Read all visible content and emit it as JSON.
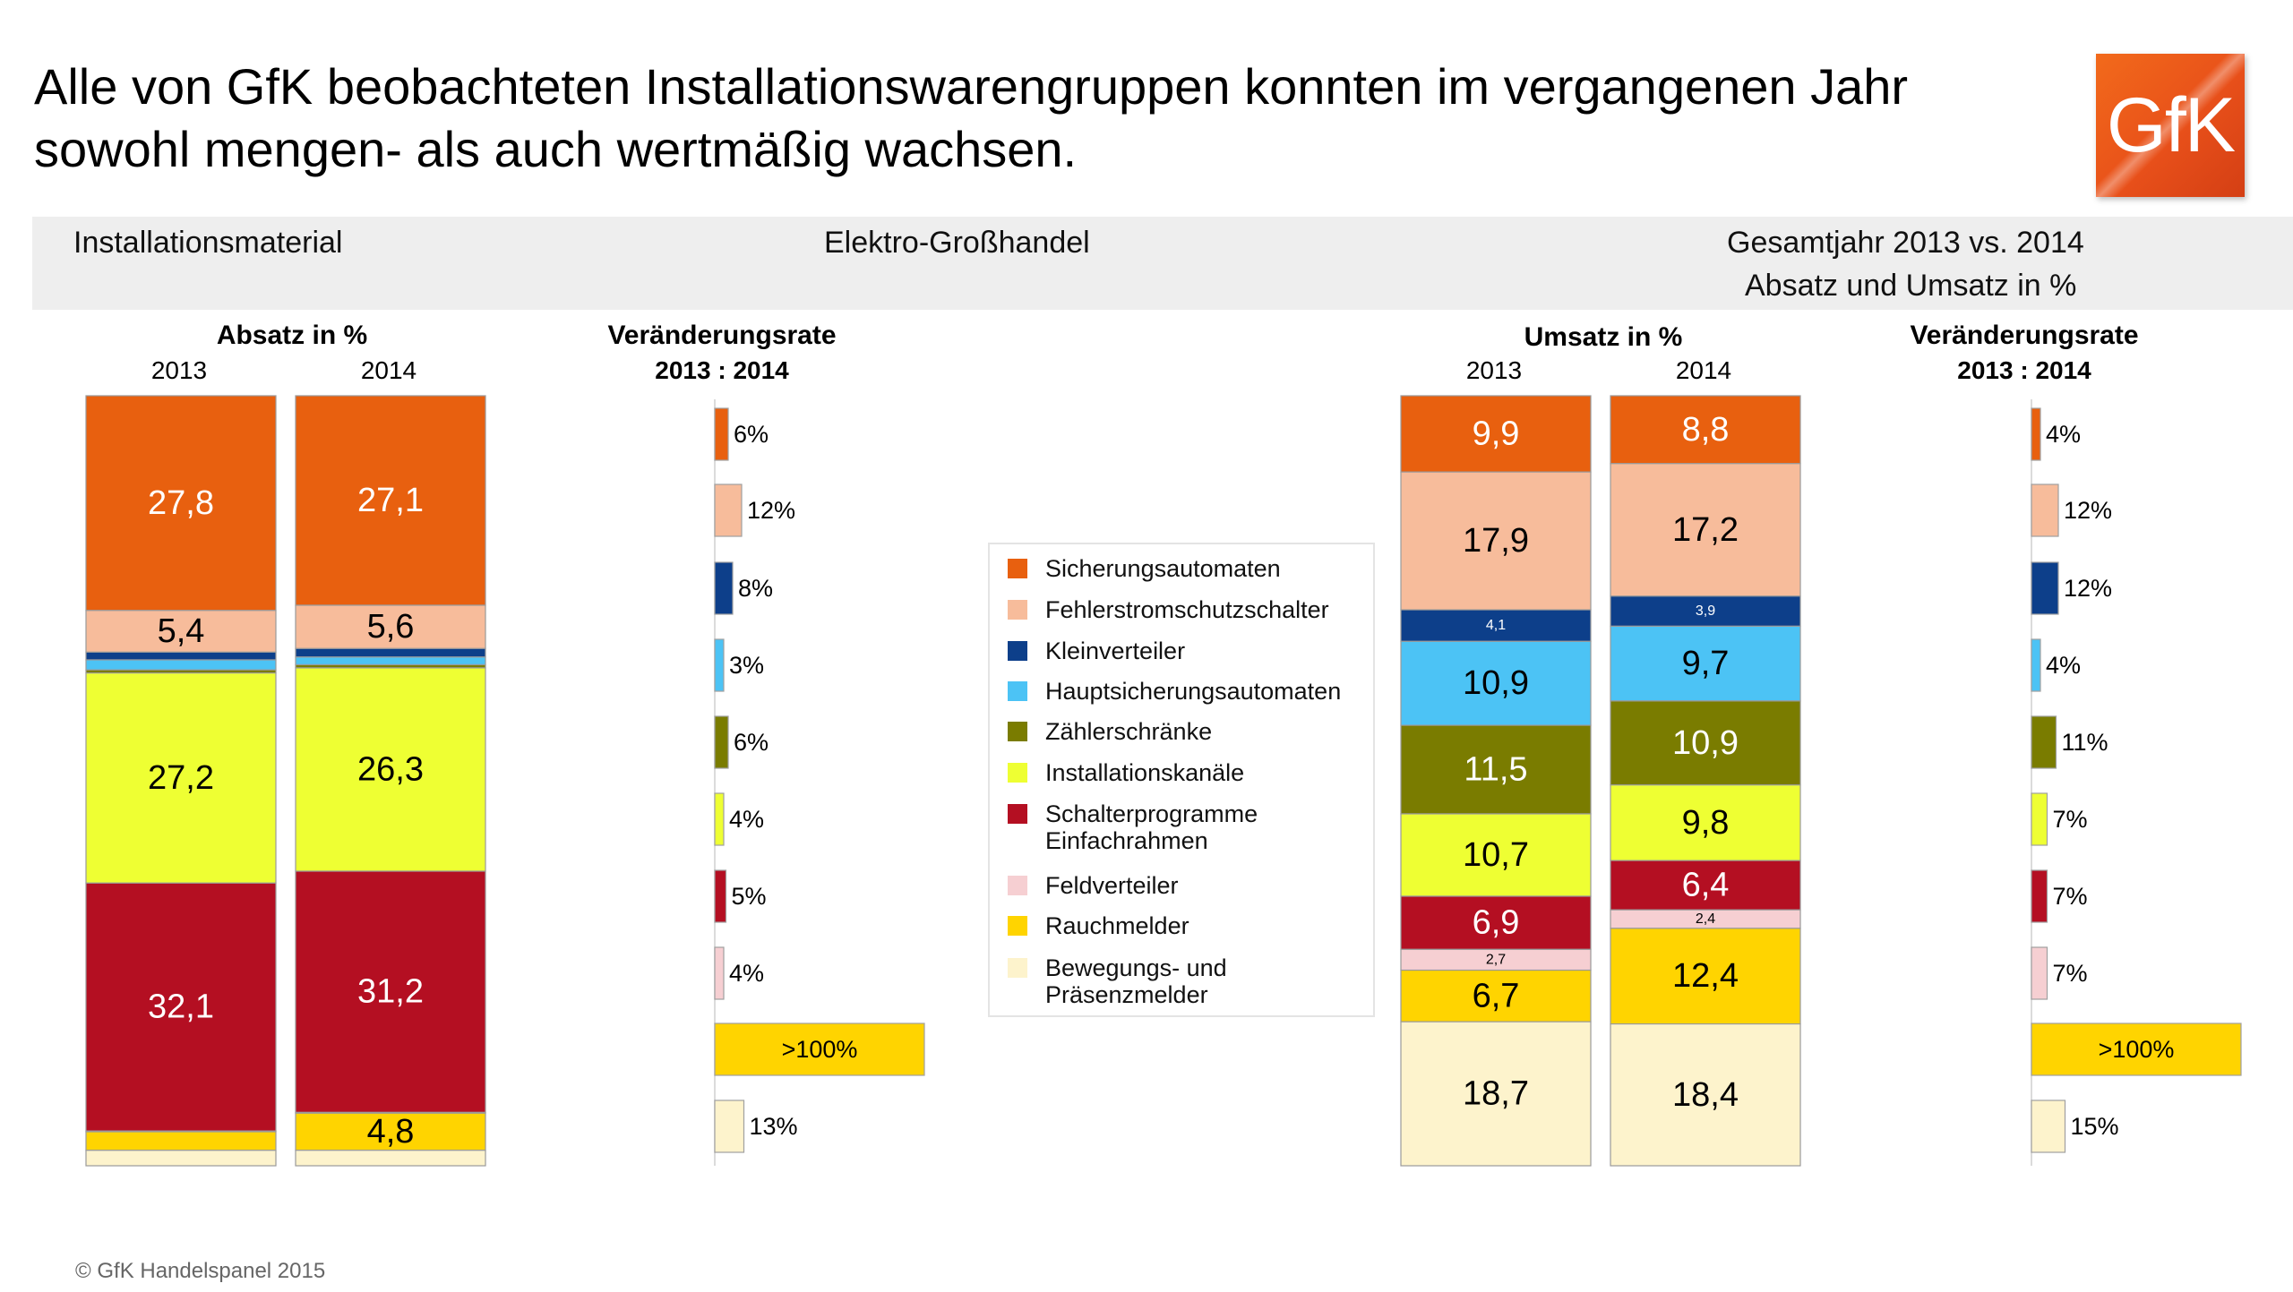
{
  "title": "Alle von GfK beobachteten Installationswarengruppen konnten im vergangenen Jahr sowohl mengen- als auch wertmäßig wachsen.",
  "logo_text": "GfK",
  "band": {
    "left": "Installationsmaterial",
    "middle": "Elektro-Großhandel",
    "right_line1": "Gesamtjahr 2013 vs. 2014",
    "right_line2": "Absatz und Umsatz in %"
  },
  "footer": "© GfK Handelspanel 2015",
  "colors": {
    "Sicherungsautomaten": "#e8600f",
    "Fehlerstromschutzschalter": "#f7bc9b",
    "Kleinverteiler": "#0d3f8a",
    "Hauptsicherungsautomaten": "#4cc3f5",
    "Zählerschränke": "#7a7c00",
    "Installationskanäle": "#eeff33",
    "Schalterprogramme Einfachrahmen": "#b40f22",
    "Feldverteiler": "#f6cfd2",
    "Rauchmelder": "#ffd400",
    "Bewegungs- und Präsenzmelder": "#fdf3cc"
  },
  "chart_data": [
    {
      "type": "bar",
      "stacked": true,
      "title": "Absatz in %",
      "categories": [
        "2013",
        "2014"
      ],
      "series": [
        {
          "name": "Sicherungsautomaten",
          "values": [
            27.8,
            27.1
          ],
          "labels": [
            "27,8",
            "27,1"
          ]
        },
        {
          "name": "Fehlerstromschutzschalter",
          "values": [
            5.4,
            5.6
          ],
          "labels": [
            "5,4",
            "5,6"
          ]
        },
        {
          "name": "Kleinverteiler",
          "values": [
            1.0,
            1.1
          ],
          "labels": [
            "",
            ""
          ]
        },
        {
          "name": "Hauptsicherungsautomaten",
          "values": [
            1.3,
            1.0
          ],
          "labels": [
            "",
            ""
          ]
        },
        {
          "name": "Zählerschränke",
          "values": [
            0.4,
            0.4
          ],
          "labels": [
            "",
            ""
          ]
        },
        {
          "name": "Installationskanäle",
          "values": [
            27.2,
            26.3
          ],
          "labels": [
            "27,2",
            "26,3"
          ]
        },
        {
          "name": "Schalterprogramme Einfachrahmen",
          "values": [
            32.1,
            31.2
          ],
          "labels": [
            "32,1",
            "31,2"
          ]
        },
        {
          "name": "Feldverteiler",
          "values": [
            0.1,
            0.1
          ],
          "labels": [
            "",
            ""
          ]
        },
        {
          "name": "Rauchmelder",
          "values": [
            2.4,
            4.8
          ],
          "labels": [
            "",
            "4,8"
          ]
        },
        {
          "name": "Bewegungs- und Präsenzmelder",
          "values": [
            2.0,
            2.0
          ],
          "labels": [
            "",
            ""
          ]
        }
      ],
      "ylim": [
        0,
        100
      ]
    },
    {
      "type": "bar",
      "orientation": "horizontal",
      "title": "Veränderungsrate",
      "subtitle": "2013 : 2014",
      "categories": [
        "Sicherungsautomaten",
        "Fehlerstromschutzschalter",
        "Kleinverteiler",
        "Hauptsicherungsautomaten",
        "Zählerschränke",
        "Installationskanäle",
        "Schalterprogramme Einfachrahmen",
        "Feldverteiler",
        "Rauchmelder",
        "Bewegungs- und Präsenzmelder"
      ],
      "values": [
        6,
        12,
        8,
        3,
        6,
        4,
        5,
        4,
        100,
        13
      ],
      "labels": [
        "6%",
        "12%",
        "8%",
        "3%",
        "6%",
        "4%",
        "5%",
        "4%",
        ">100%",
        "13%"
      ]
    },
    {
      "type": "bar",
      "stacked": true,
      "title": "Umsatz in %",
      "categories": [
        "2013",
        "2014"
      ],
      "series": [
        {
          "name": "Sicherungsautomaten",
          "values": [
            9.9,
            8.8
          ],
          "labels": [
            "9,9",
            "8,8"
          ]
        },
        {
          "name": "Fehlerstromschutzschalter",
          "values": [
            17.9,
            17.2
          ],
          "labels": [
            "17,9",
            "17,2"
          ]
        },
        {
          "name": "Kleinverteiler",
          "values": [
            4.1,
            3.9
          ],
          "labels": [
            "4,1",
            "3,9"
          ]
        },
        {
          "name": "Hauptsicherungsautomaten",
          "values": [
            10.9,
            9.7
          ],
          "labels": [
            "10,9",
            "9,7"
          ]
        },
        {
          "name": "Zählerschränke",
          "values": [
            11.5,
            10.9
          ],
          "labels": [
            "11,5",
            "10,9"
          ]
        },
        {
          "name": "Installationskanäle",
          "values": [
            10.7,
            9.8
          ],
          "labels": [
            "10,7",
            "9,8"
          ]
        },
        {
          "name": "Schalterprogramme Einfachrahmen",
          "values": [
            6.9,
            6.4
          ],
          "labels": [
            "6,9",
            "6,4"
          ]
        },
        {
          "name": "Feldverteiler",
          "values": [
            2.7,
            2.4
          ],
          "labels": [
            "2,7",
            "2,4"
          ]
        },
        {
          "name": "Rauchmelder",
          "values": [
            6.7,
            12.4
          ],
          "labels": [
            "6,7",
            "12,4"
          ]
        },
        {
          "name": "Bewegungs- und Präsenzmelder",
          "values": [
            18.7,
            18.4
          ],
          "labels": [
            "18,7",
            "18,4"
          ]
        }
      ],
      "ylim": [
        0,
        100
      ]
    },
    {
      "type": "bar",
      "orientation": "horizontal",
      "title": "Veränderungsrate",
      "subtitle": "2013 : 2014",
      "categories": [
        "Sicherungsautomaten",
        "Fehlerstromschutzschalter",
        "Kleinverteiler",
        "Hauptsicherungsautomaten",
        "Zählerschränke",
        "Installationskanäle",
        "Schalterprogramme Einfachrahmen",
        "Feldverteiler",
        "Rauchmelder",
        "Bewegungs- und Präsenzmelder"
      ],
      "values": [
        4,
        12,
        12,
        4,
        11,
        7,
        7,
        7,
        100,
        15
      ],
      "labels": [
        "4%",
        "12%",
        "12%",
        "4%",
        "11%",
        "7%",
        "7%",
        "7%",
        ">100%",
        "15%"
      ]
    }
  ],
  "legend": {
    "items": [
      {
        "label": "Sicherungsautomaten"
      },
      {
        "label": "Fehlerstromschutzschalter"
      },
      {
        "label": "Kleinverteiler"
      },
      {
        "label": "Hauptsicherungsautomaten"
      },
      {
        "label": "Zählerschränke"
      },
      {
        "label": "Installationskanäle"
      },
      {
        "label": "Schalterprogramme\nEinfachrahmen"
      },
      {
        "label": "Feldverteiler"
      },
      {
        "label": "Rauchmelder"
      },
      {
        "label": "Bewegungs- und\nPräsenzmelder"
      }
    ]
  }
}
